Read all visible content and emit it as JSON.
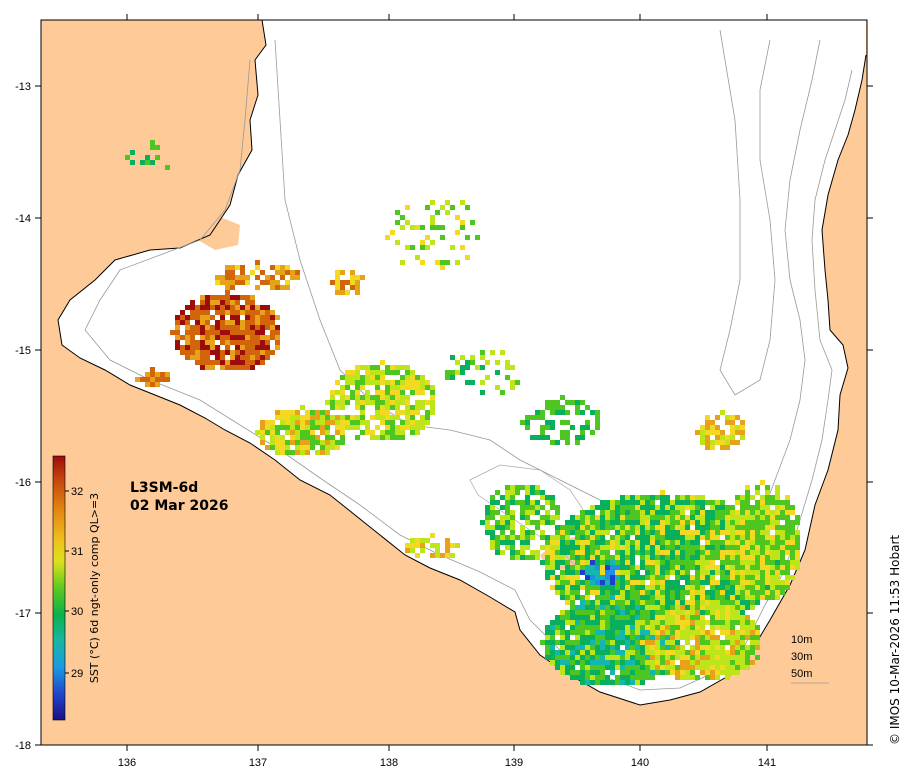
{
  "map": {
    "product": "L3SM-6d",
    "date": "02 Mar 2026",
    "credit": "© IMOS 10-Mar-2026 11:53 Hobart",
    "lon_ticks": [
      "136",
      "137",
      "138",
      "139",
      "140",
      "141"
    ],
    "lat_ticks": [
      "-13",
      "-14",
      "-15",
      "-16",
      "-17",
      "-18"
    ],
    "land_color": "#fdca98",
    "frame_color": "#000000"
  },
  "colorbar": {
    "title": "SST (°C) 6d ngt-only comp QL>=3",
    "ticks": [
      "32",
      "31",
      "30",
      "29"
    ],
    "colors": [
      "#9c0c0c",
      "#d2650a",
      "#e6a31a",
      "#f3d922",
      "#bde51a",
      "#4ec621",
      "#08b05d",
      "#14b6b0",
      "#1e8ee6",
      "#1f3dcf",
      "#1a0f84"
    ]
  },
  "depth_legend": {
    "items": [
      "10m",
      "30m",
      "50m"
    ]
  }
}
